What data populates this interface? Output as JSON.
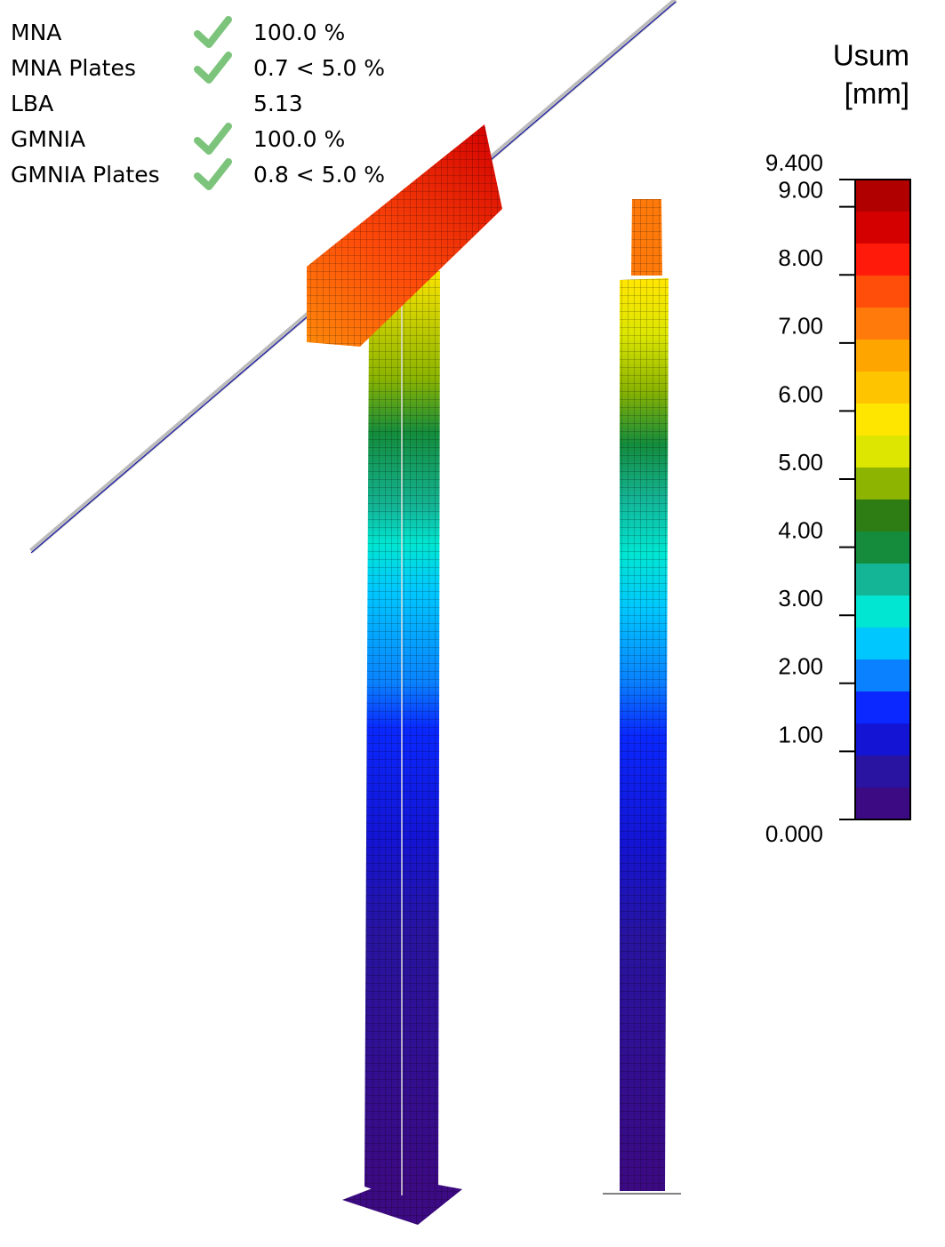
{
  "results": {
    "rows": [
      {
        "name": "MNA",
        "check": true,
        "value": "100.0 %"
      },
      {
        "name": "MNA Plates",
        "check": true,
        "value": "0.7 < 5.0 %"
      },
      {
        "name": "LBA",
        "check": false,
        "value": "5.13"
      },
      {
        "name": "GMNIA",
        "check": true,
        "value": "100.0 %"
      },
      {
        "name": "GMNIA Plates",
        "check": true,
        "value": "0.8 < 5.0 %"
      }
    ]
  },
  "legend": {
    "title": "Usum",
    "unit": "[mm]",
    "range": [
      0,
      9.4
    ],
    "ticks": [
      {
        "value": 9.4,
        "label": "9.400"
      },
      {
        "value": 9,
        "label": "9.00"
      },
      {
        "value": 8,
        "label": "8.00"
      },
      {
        "value": 7,
        "label": "7.00"
      },
      {
        "value": 6,
        "label": "6.00"
      },
      {
        "value": 5,
        "label": "5.00"
      },
      {
        "value": 4,
        "label": "4.00"
      },
      {
        "value": 3,
        "label": "3.00"
      },
      {
        "value": 2,
        "label": "2.00"
      },
      {
        "value": 1,
        "label": "1.00"
      },
      {
        "value": 0,
        "label": "0.000"
      }
    ],
    "colors": [
      "#b00000",
      "#d40000",
      "#ff1a0a",
      "#ff4d0a",
      "#ff7a0a",
      "#ffa500",
      "#ffc400",
      "#ffe600",
      "#dde600",
      "#8cb400",
      "#2d7d14",
      "#148c3c",
      "#14b496",
      "#00e6d2",
      "#00c8ff",
      "#0a82ff",
      "#0a28ff",
      "#1414d4",
      "#2814a0",
      "#3c0a82"
    ]
  }
}
